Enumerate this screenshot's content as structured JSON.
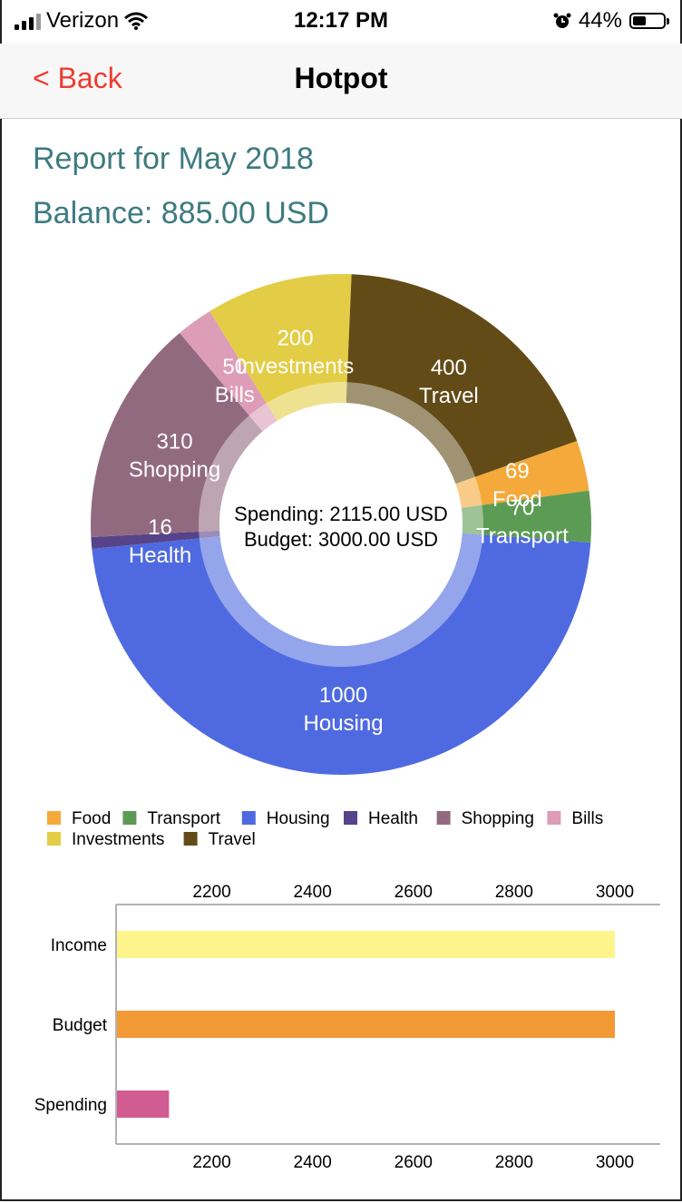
{
  "status_bar": {
    "carrier": "Verizon",
    "time": "12:17 PM",
    "battery": "44%",
    "battery_level": 0.44
  },
  "nav": {
    "back_label": "< Back",
    "title": "Hotpot"
  },
  "report": {
    "title": "Report for May 2018",
    "balance": "Balance: 885.00 USD"
  },
  "donut": {
    "center_line1": "Spending: 2115.00 USD",
    "center_line2": "Budget: 3000.00 USD"
  },
  "chart_data": [
    {
      "type": "pie",
      "style": "donut",
      "categories": [
        "Food",
        "Transport",
        "Housing",
        "Health",
        "Shopping",
        "Bills",
        "Investments",
        "Travel"
      ],
      "values": [
        69,
        70,
        1000,
        16,
        310,
        50,
        200,
        400
      ],
      "colors": [
        "#f4a93a",
        "#5c9b53",
        "#4f6ae0",
        "#574389",
        "#926a80",
        "#de9db7",
        "#e3cd46",
        "#624b16"
      ],
      "legend_placement": "bottom-left"
    },
    {
      "type": "bar",
      "orientation": "horizontal",
      "categories": [
        "Income",
        "Budget",
        "Spending"
      ],
      "values": [
        3000,
        3000,
        2115
      ],
      "colors": [
        "#fdf58c",
        "#f29a36",
        "#d05c91"
      ],
      "xlim": [
        2010,
        3090
      ],
      "xticks": [
        2200,
        2400,
        2600,
        2800,
        3000
      ]
    }
  ]
}
